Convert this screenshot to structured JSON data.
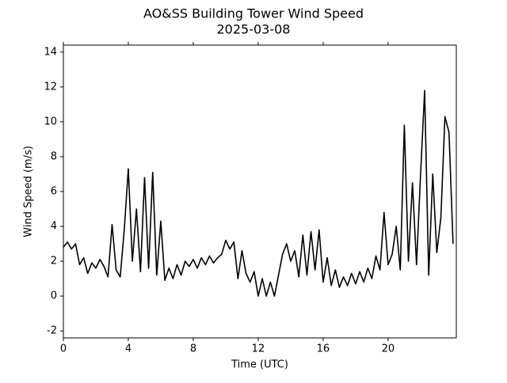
{
  "chart_data": {
    "type": "line",
    "title": "AO&SS Building Tower Wind Speed",
    "subtitle": "2025-03-08",
    "x_label": "Time (UTC)",
    "y_label": "Wind Speed (m/s)",
    "x": [
      0,
      0.25,
      0.5,
      0.75,
      1,
      1.25,
      1.5,
      1.75,
      2,
      2.25,
      2.5,
      2.75,
      3,
      3.25,
      3.5,
      3.75,
      4,
      4.25,
      4.5,
      4.75,
      5,
      5.25,
      5.5,
      5.75,
      6,
      6.25,
      6.5,
      6.75,
      7,
      7.25,
      7.5,
      7.75,
      8,
      8.25,
      8.5,
      8.75,
      9,
      9.25,
      9.5,
      9.75,
      10,
      10.25,
      10.5,
      10.75,
      11,
      11.25,
      11.5,
      11.75,
      12,
      12.25,
      12.5,
      12.75,
      13,
      13.25,
      13.5,
      13.75,
      14,
      14.25,
      14.5,
      14.75,
      15,
      15.25,
      15.5,
      15.75,
      16,
      16.25,
      16.5,
      16.75,
      17,
      17.25,
      17.5,
      17.75,
      18,
      18.25,
      18.5,
      18.75,
      19,
      19.25,
      19.5,
      19.75,
      20,
      20.25,
      20.5,
      20.75,
      21,
      21.25,
      21.5,
      21.75,
      22,
      22.25,
      22.5,
      22.75,
      23,
      23.25,
      23.5,
      23.75,
      24
    ],
    "series": [
      {
        "color": "#000000",
        "values": [
          2.8,
          3.1,
          2.7,
          3.0,
          1.8,
          2.2,
          1.3,
          1.9,
          1.6,
          2.1,
          1.7,
          1.1,
          4.1,
          1.5,
          1.1,
          3.8,
          7.3,
          2.0,
          5.0,
          1.4,
          6.8,
          1.6,
          7.1,
          1.2,
          4.3,
          0.9,
          1.6,
          1.0,
          1.8,
          1.2,
          2.0,
          1.7,
          2.1,
          1.6,
          2.2,
          1.8,
          2.3,
          1.9,
          2.2,
          2.4,
          3.2,
          2.7,
          3.1,
          1.0,
          2.6,
          1.3,
          0.8,
          1.4,
          0.0,
          1.0,
          0.0,
          0.8,
          0.0,
          1.2,
          2.4,
          3.0,
          2.0,
          2.6,
          1.1,
          3.5,
          1.2,
          3.7,
          1.5,
          3.8,
          0.8,
          2.2,
          0.6,
          1.5,
          0.5,
          1.1,
          0.6,
          1.3,
          0.7,
          1.4,
          0.8,
          1.6,
          1.0,
          2.3,
          1.5,
          4.8,
          1.8,
          2.4,
          4.0,
          1.5,
          9.8,
          2.0,
          6.5,
          1.8,
          7.0,
          11.8,
          1.2,
          7.0,
          2.5,
          4.5,
          10.3,
          9.4,
          3.0
        ]
      }
    ],
    "xlim": [
      0,
      24.2
    ],
    "xticks": [
      0,
      4,
      8,
      12,
      16,
      20
    ],
    "ylim": [
      -2.4,
      14.4
    ],
    "yticks": [
      -2,
      0,
      2,
      4,
      6,
      8,
      10,
      12,
      14
    ]
  }
}
